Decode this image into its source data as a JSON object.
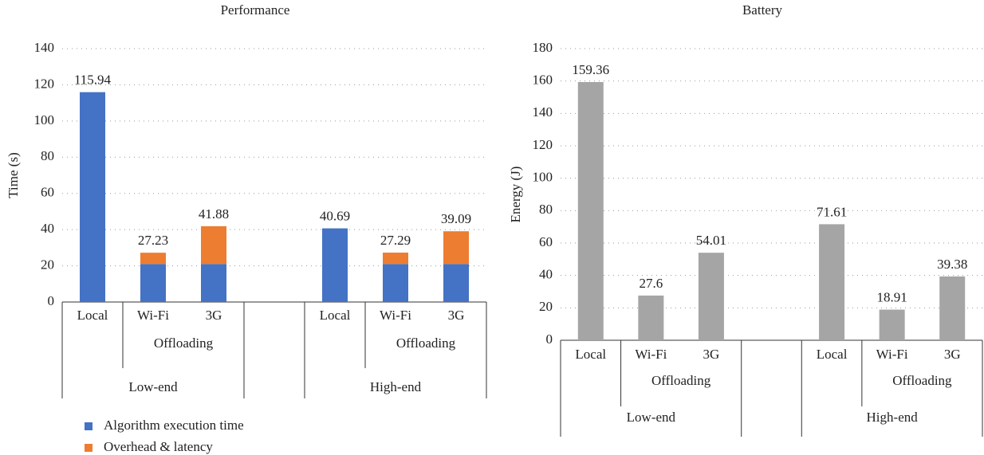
{
  "chart_data": [
    {
      "type": "bar",
      "stacked": true,
      "title": "Performance",
      "ylabel": "Time (s)",
      "categories": [
        "Local",
        "Wi-Fi",
        "3G",
        null,
        "Local",
        "Wi-Fi",
        "3G"
      ],
      "subgroups": [
        "Offloading",
        "Offloading"
      ],
      "groups": [
        "Low-end",
        "High-end"
      ],
      "series": [
        {
          "name": "Algorithm execution time",
          "color": "#4472c4",
          "values": [
            115.94,
            21,
            21,
            null,
            40.69,
            21,
            21
          ]
        },
        {
          "name": "Overhead & latency",
          "color": "#ed7d31",
          "values": [
            null,
            6.23,
            20.88,
            null,
            null,
            6.29,
            18.09
          ]
        }
      ],
      "totals": [
        115.94,
        27.23,
        41.88,
        null,
        40.69,
        27.29,
        39.09
      ],
      "ylim": [
        0,
        140
      ],
      "yticks": [
        0,
        20,
        40,
        60,
        80,
        100,
        120,
        140
      ],
      "grid": true,
      "legend": "bottom-left"
    },
    {
      "type": "bar",
      "title": "Battery",
      "ylabel": "Energy (J)",
      "categories": [
        "Local",
        "Wi-Fi",
        "3G",
        null,
        "Local",
        "Wi-Fi",
        "3G"
      ],
      "subgroups": [
        "Offloading",
        "Offloading"
      ],
      "groups": [
        "Low-end",
        "High-end"
      ],
      "values": [
        159.36,
        27.6,
        54.01,
        null,
        71.61,
        18.91,
        39.38
      ],
      "color": "#a5a5a5",
      "ylim": [
        0,
        180
      ],
      "yticks": [
        0,
        20,
        40,
        60,
        80,
        100,
        120,
        140,
        160,
        180
      ],
      "grid": true
    }
  ]
}
